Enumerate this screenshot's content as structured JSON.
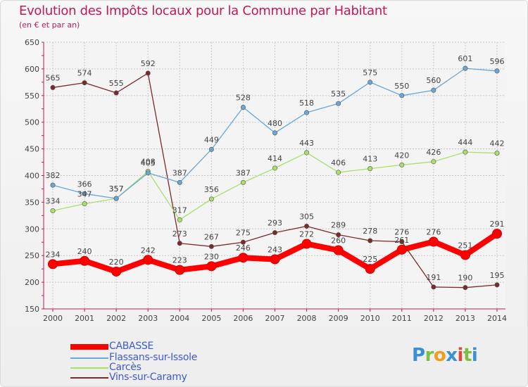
{
  "title": "Evolution des Impôts locaux pour la Commune par Habitant",
  "subtitle": "(en € et par an)",
  "logo_text": "Proxiti",
  "chart_data": {
    "type": "line",
    "x": [
      "2000",
      "2001",
      "2002",
      "2003",
      "2004",
      "2005",
      "2006",
      "2007",
      "2008",
      "2009",
      "2010",
      "2011",
      "2012",
      "2013",
      "2014"
    ],
    "ylim": [
      150,
      650
    ],
    "yticks": [
      150,
      200,
      250,
      300,
      350,
      400,
      450,
      500,
      550,
      600,
      650
    ],
    "grid": true,
    "series": [
      {
        "name": "CABASSE",
        "color": "#ff0000",
        "values": [
          234,
          240,
          220,
          242,
          223,
          230,
          246,
          243,
          272,
          260,
          225,
          261,
          276,
          251,
          291
        ]
      },
      {
        "name": "Flassans-sur-Issole",
        "color": "#6aa6d8",
        "values": [
          382,
          366,
          357,
          405,
          387,
          449,
          528,
          480,
          518,
          535,
          575,
          550,
          560,
          601,
          596
        ]
      },
      {
        "name": "Carcès",
        "color": "#a8e06a",
        "values": [
          334,
          347,
          357,
          408,
          317,
          356,
          387,
          414,
          443,
          406,
          413,
          420,
          426,
          444,
          442
        ]
      },
      {
        "name": "Vins-sur-Caramy",
        "color": "#7a2a2a",
        "values": [
          565,
          574,
          555,
          592,
          273,
          267,
          275,
          293,
          305,
          289,
          278,
          276,
          191,
          190,
          195
        ]
      }
    ]
  }
}
